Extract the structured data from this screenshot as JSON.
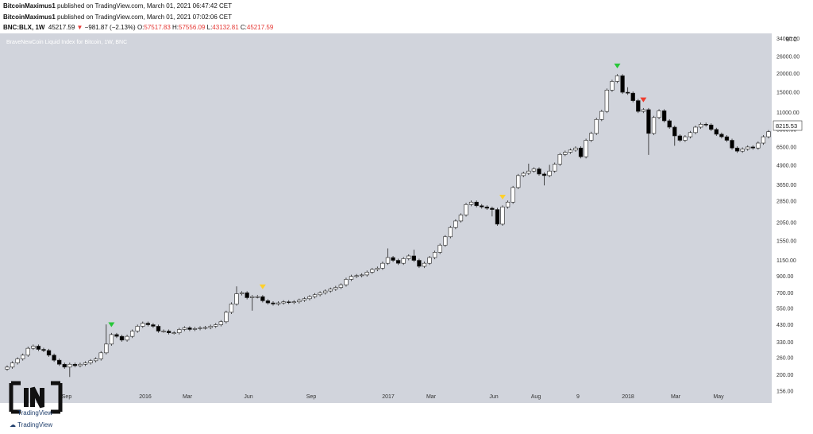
{
  "header": {
    "line1": {
      "user": "BitcoinMaximus1",
      "text": " published on TradingView.com, March 01, 2021 06:47:42 CET"
    },
    "line2": {
      "user": "BitcoinMaximus1",
      "text": " published on TradingView.com, March 01, 2021 07:02:06 CET"
    },
    "line3": {
      "symbol": "BNC:BLX, 1W",
      "price": "45217.59",
      "change_arrow": "▼",
      "change": "−981.87 (−2.13%)",
      "o_label": "O:",
      "o": "57517.83",
      "h_label": "H:",
      "h": "57556.09",
      "l_label": "L:",
      "l": "43132.81",
      "c_label": "C:",
      "c": "45217.59"
    }
  },
  "watermark": "TradingView",
  "chart_data": {
    "type": "candlestick",
    "title": "BraveNewCoin Liquid Index for Bitcoin, 1W, BNC",
    "yaxis": {
      "scale": "log",
      "unit": "BTC",
      "ticks": [
        "156.00",
        "200.00",
        "260.00",
        "330.00",
        "430.00",
        "550.00",
        "700.00",
        "900.00",
        "1150.00",
        "1550.00",
        "2050.00",
        "2850.00",
        "3650.00",
        "4900.00",
        "6500.00",
        "8500.00",
        "11000.00",
        "15000.00",
        "20000.00",
        "26000.00",
        "34000.00"
      ],
      "ylim": [
        130,
        36000
      ]
    },
    "xaxis": {
      "ticks": [
        "Sep",
        "2016",
        "Mar",
        "Jun",
        "Sep",
        "2017",
        "Mar",
        "Jun",
        "Aug",
        "9",
        "2018",
        "Mar",
        "May"
      ]
    },
    "last_price": "8215.53",
    "colors": {
      "background": "#d1d4dc",
      "up_body": "#ffffff",
      "down_body": "#000000",
      "wick": "#222222",
      "marker_green": "#26c637",
      "marker_yellow": "#ffd02b",
      "marker_red": "#ef3b2c"
    },
    "closes": [
      225,
      240,
      255,
      270,
      300,
      310,
      295,
      290,
      270,
      250,
      235,
      225,
      235,
      230,
      235,
      240,
      248,
      255,
      280,
      320,
      370,
      360,
      340,
      360,
      390,
      420,
      440,
      430,
      420,
      390,
      390,
      380,
      380,
      400,
      410,
      400,
      405,
      410,
      412,
      420,
      430,
      450,
      520,
      590,
      690,
      700,
      650,
      660,
      660,
      620,
      600,
      590,
      600,
      610,
      605,
      610,
      625,
      640,
      660,
      680,
      700,
      720,
      740,
      760,
      790,
      860,
      900,
      910,
      920,
      960,
      1000,
      1020,
      1100,
      1200,
      1150,
      1100,
      1180,
      1230,
      1150,
      1050,
      1100,
      1200,
      1300,
      1450,
      1650,
      1900,
      2100,
      2300,
      2700,
      2800,
      2650,
      2600,
      2550,
      2500,
      2000,
      2600,
      2800,
      3500,
      4200,
      4350,
      4500,
      4650,
      4300,
      4200,
      4500,
      5000,
      5800,
      6000,
      6200,
      6400,
      5600,
      7200,
      8000,
      9900,
      11200,
      15500,
      17700,
      19300,
      15000,
      14800,
      13200,
      11200,
      11500,
      8000,
      10200,
      11300,
      9700,
      8800,
      7700,
      7200,
      7600,
      8100,
      8800,
      9200,
      9100,
      8500,
      7900,
      7600,
      7200,
      6400,
      6100,
      6300,
      6500,
      6400,
      6900,
      7600,
      8215
    ]
  }
}
